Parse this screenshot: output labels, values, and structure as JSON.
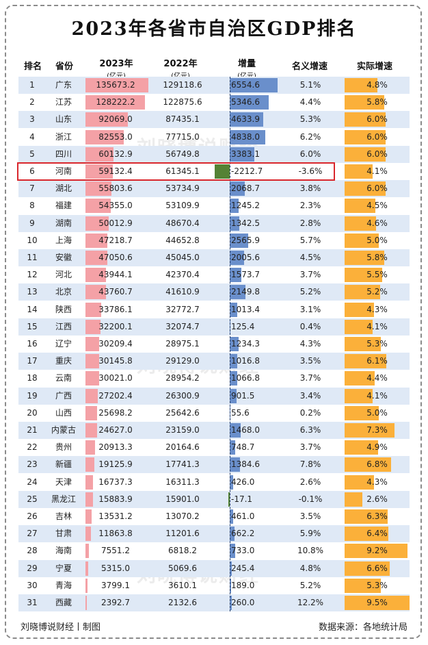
{
  "title": "2023年各省市自治区GDP排名",
  "headers": {
    "rank": "排名",
    "province": "省份",
    "gdp2023": "2023年",
    "gdp2023_unit": "(亿元)",
    "gdp2022": "2022年",
    "gdp2022_unit": "(亿元)",
    "increase": "增量",
    "increase_unit": "(亿元)",
    "nominal": "名义增速",
    "real": "实际增速"
  },
  "highlight_province": "河南",
  "watermark": "刘晓博说财经",
  "footer": {
    "left": "刘晓博说财经丨制图",
    "right": "数据来源：各地统计局"
  },
  "colors": {
    "gdp_bar": "#f4a1a6",
    "increase_bar": "#6a8fcb",
    "negative_bar": "#548235",
    "real_growth_bar": "#fbb03a",
    "stripe": "#dfe9f6",
    "highlight_border": "#d9262c"
  },
  "chart_data": {
    "type": "table",
    "columns": [
      "排名",
      "省份",
      "2023年(亿元)",
      "2022年(亿元)",
      "增量(亿元)",
      "名义增速",
      "实际增速"
    ],
    "rows": [
      {
        "rank": "1",
        "province": "广东",
        "gdp2023": "135673.2",
        "gdp2022": "129118.6",
        "increase": "6554.6",
        "nominal": "5.1%",
        "real": "4.8%"
      },
      {
        "rank": "2",
        "province": "江苏",
        "gdp2023": "128222.2",
        "gdp2022": "122875.6",
        "increase": "5346.6",
        "nominal": "4.4%",
        "real": "5.8%"
      },
      {
        "rank": "3",
        "province": "山东",
        "gdp2023": "92069.0",
        "gdp2022": "87435.1",
        "increase": "4633.9",
        "nominal": "5.3%",
        "real": "6.0%"
      },
      {
        "rank": "4",
        "province": "浙江",
        "gdp2023": "82553.0",
        "gdp2022": "77715.0",
        "increase": "4838.0",
        "nominal": "6.2%",
        "real": "6.0%"
      },
      {
        "rank": "5",
        "province": "四川",
        "gdp2023": "60132.9",
        "gdp2022": "56749.8",
        "increase": "3383.1",
        "nominal": "6.0%",
        "real": "6.0%"
      },
      {
        "rank": "6",
        "province": "河南",
        "gdp2023": "59132.4",
        "gdp2022": "61345.1",
        "increase": "-2212.7",
        "nominal": "-3.6%",
        "real": "4.1%"
      },
      {
        "rank": "7",
        "province": "湖北",
        "gdp2023": "55803.6",
        "gdp2022": "53734.9",
        "increase": "2068.7",
        "nominal": "3.8%",
        "real": "6.0%"
      },
      {
        "rank": "8",
        "province": "福建",
        "gdp2023": "54355.0",
        "gdp2022": "53109.9",
        "increase": "1245.2",
        "nominal": "2.3%",
        "real": "4.5%"
      },
      {
        "rank": "9",
        "province": "湖南",
        "gdp2023": "50012.9",
        "gdp2022": "48670.4",
        "increase": "1342.5",
        "nominal": "2.8%",
        "real": "4.6%"
      },
      {
        "rank": "10",
        "province": "上海",
        "gdp2023": "47218.7",
        "gdp2022": "44652.8",
        "increase": "2565.9",
        "nominal": "5.7%",
        "real": "5.0%"
      },
      {
        "rank": "11",
        "province": "安徽",
        "gdp2023": "47050.6",
        "gdp2022": "45045.0",
        "increase": "2005.6",
        "nominal": "4.5%",
        "real": "5.8%"
      },
      {
        "rank": "12",
        "province": "河北",
        "gdp2023": "43944.1",
        "gdp2022": "42370.4",
        "increase": "1573.7",
        "nominal": "3.7%",
        "real": "5.5%"
      },
      {
        "rank": "13",
        "province": "北京",
        "gdp2023": "43760.7",
        "gdp2022": "41610.9",
        "increase": "2149.8",
        "nominal": "5.2%",
        "real": "5.2%"
      },
      {
        "rank": "14",
        "province": "陕西",
        "gdp2023": "33786.1",
        "gdp2022": "32772.7",
        "increase": "1013.4",
        "nominal": "3.1%",
        "real": "4.3%"
      },
      {
        "rank": "15",
        "province": "江西",
        "gdp2023": "32200.1",
        "gdp2022": "32074.7",
        "increase": "125.4",
        "nominal": "0.4%",
        "real": "4.1%"
      },
      {
        "rank": "16",
        "province": "辽宁",
        "gdp2023": "30209.4",
        "gdp2022": "28975.1",
        "increase": "1234.3",
        "nominal": "4.3%",
        "real": "5.3%"
      },
      {
        "rank": "17",
        "province": "重庆",
        "gdp2023": "30145.8",
        "gdp2022": "29129.0",
        "increase": "1016.8",
        "nominal": "3.5%",
        "real": "6.1%"
      },
      {
        "rank": "18",
        "province": "云南",
        "gdp2023": "30021.0",
        "gdp2022": "28954.2",
        "increase": "1066.8",
        "nominal": "3.7%",
        "real": "4.4%"
      },
      {
        "rank": "19",
        "province": "广西",
        "gdp2023": "27202.4",
        "gdp2022": "26300.9",
        "increase": "901.5",
        "nominal": "3.4%",
        "real": "4.1%"
      },
      {
        "rank": "20",
        "province": "山西",
        "gdp2023": "25698.2",
        "gdp2022": "25642.6",
        "increase": "55.6",
        "nominal": "0.2%",
        "real": "5.0%"
      },
      {
        "rank": "21",
        "province": "内蒙古",
        "gdp2023": "24627.0",
        "gdp2022": "23159.0",
        "increase": "1468.0",
        "nominal": "6.3%",
        "real": "7.3%"
      },
      {
        "rank": "22",
        "province": "贵州",
        "gdp2023": "20913.3",
        "gdp2022": "20164.6",
        "increase": "748.7",
        "nominal": "3.7%",
        "real": "4.9%"
      },
      {
        "rank": "23",
        "province": "新疆",
        "gdp2023": "19125.9",
        "gdp2022": "17741.3",
        "increase": "1384.6",
        "nominal": "7.8%",
        "real": "6.8%"
      },
      {
        "rank": "24",
        "province": "天津",
        "gdp2023": "16737.3",
        "gdp2022": "16311.3",
        "increase": "426.0",
        "nominal": "2.6%",
        "real": "4.3%"
      },
      {
        "rank": "25",
        "province": "黑龙江",
        "gdp2023": "15883.9",
        "gdp2022": "15901.0",
        "increase": "-17.1",
        "nominal": "-0.1%",
        "real": "2.6%"
      },
      {
        "rank": "26",
        "province": "吉林",
        "gdp2023": "13531.2",
        "gdp2022": "13070.2",
        "increase": "461.0",
        "nominal": "3.5%",
        "real": "6.3%"
      },
      {
        "rank": "27",
        "province": "甘肃",
        "gdp2023": "11863.8",
        "gdp2022": "11201.6",
        "increase": "662.2",
        "nominal": "5.9%",
        "real": "6.4%"
      },
      {
        "rank": "28",
        "province": "海南",
        "gdp2023": "7551.2",
        "gdp2022": "6818.2",
        "increase": "733.0",
        "nominal": "10.8%",
        "real": "9.2%"
      },
      {
        "rank": "29",
        "province": "宁夏",
        "gdp2023": "5315.0",
        "gdp2022": "5069.6",
        "increase": "245.4",
        "nominal": "4.8%",
        "real": "6.6%"
      },
      {
        "rank": "30",
        "province": "青海",
        "gdp2023": "3799.1",
        "gdp2022": "3610.1",
        "increase": "189.0",
        "nominal": "5.2%",
        "real": "5.3%"
      },
      {
        "rank": "31",
        "province": "西藏",
        "gdp2023": "2392.7",
        "gdp2022": "2132.6",
        "increase": "260.0",
        "nominal": "12.2%",
        "real": "9.5%"
      }
    ]
  }
}
